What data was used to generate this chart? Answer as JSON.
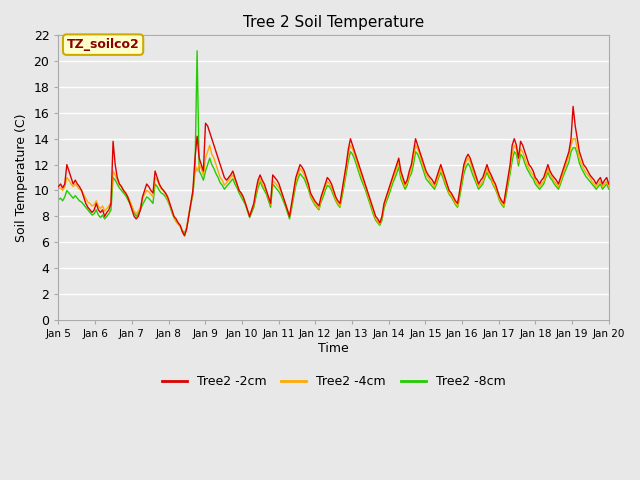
{
  "title": "Tree 2 Soil Temperature",
  "xlabel": "Time",
  "ylabel": "Soil Temperature (C)",
  "annotation_text": "TZ_soilco2",
  "annotation_color": "#8b0000",
  "annotation_bg": "#ffffcc",
  "annotation_border": "#ccaa00",
  "ylim": [
    0,
    22
  ],
  "yticks": [
    0,
    2,
    4,
    6,
    8,
    10,
    12,
    14,
    16,
    18,
    20,
    22
  ],
  "bg_color": "#e8e8e8",
  "grid_color": "#ffffff",
  "line_2cm_color": "#dd0000",
  "line_4cm_color": "#ffaa00",
  "line_8cm_color": "#22cc00",
  "xtick_labels": [
    "Jan 5",
    "Jan 6",
    "Jan 7",
    "Jan 8",
    "Jan 9",
    "Jan 10",
    "Jan 11",
    "Jan 12",
    "Jan 13",
    "Jan 14",
    "Jan 15",
    "Jan 16",
    "Jan 17",
    "Jan 18",
    "Jan 19",
    "Jan 20"
  ],
  "t_2cm": [
    10.3,
    10.5,
    10.2,
    10.5,
    12.0,
    11.5,
    11.0,
    10.5,
    10.8,
    10.5,
    10.3,
    10.0,
    9.5,
    9.0,
    8.7,
    8.5,
    8.3,
    8.5,
    9.0,
    8.5,
    8.3,
    8.5,
    8.0,
    8.3,
    8.5,
    9.0,
    13.8,
    12.0,
    11.0,
    10.5,
    10.3,
    10.0,
    9.8,
    9.5,
    9.0,
    8.5,
    8.0,
    7.8,
    8.0,
    8.5,
    9.5,
    10.0,
    10.5,
    10.3,
    10.0,
    9.8,
    11.5,
    11.0,
    10.5,
    10.2,
    10.0,
    9.8,
    9.5,
    9.0,
    8.5,
    8.0,
    7.8,
    7.5,
    7.3,
    6.8,
    6.5,
    7.0,
    8.0,
    9.0,
    10.0,
    12.5,
    14.2,
    12.5,
    12.0,
    11.5,
    15.2,
    15.0,
    14.5,
    14.0,
    13.5,
    13.0,
    12.5,
    12.0,
    11.5,
    11.0,
    10.8,
    11.0,
    11.2,
    11.5,
    11.0,
    10.5,
    10.0,
    9.8,
    9.5,
    9.0,
    8.5,
    8.0,
    8.5,
    9.0,
    10.0,
    10.8,
    11.2,
    10.8,
    10.5,
    10.0,
    9.5,
    9.0,
    11.2,
    11.0,
    10.8,
    10.5,
    10.0,
    9.5,
    9.0,
    8.5,
    8.0,
    9.0,
    10.0,
    11.0,
    11.5,
    12.0,
    11.8,
    11.5,
    11.0,
    10.5,
    9.8,
    9.5,
    9.2,
    9.0,
    8.8,
    9.5,
    10.0,
    10.5,
    11.0,
    10.8,
    10.5,
    10.0,
    9.5,
    9.2,
    9.0,
    10.0,
    11.0,
    12.0,
    13.2,
    14.0,
    13.5,
    13.0,
    12.5,
    12.0,
    11.5,
    11.0,
    10.5,
    10.0,
    9.5,
    9.0,
    8.5,
    8.0,
    7.8,
    7.5,
    8.0,
    9.0,
    9.5,
    10.0,
    10.5,
    11.0,
    11.5,
    12.0,
    12.5,
    11.5,
    11.0,
    10.5,
    10.8,
    11.5,
    12.0,
    13.0,
    14.0,
    13.5,
    13.0,
    12.5,
    12.0,
    11.5,
    11.2,
    11.0,
    10.8,
    10.5,
    11.0,
    11.5,
    12.0,
    11.5,
    11.0,
    10.5,
    10.0,
    9.8,
    9.5,
    9.2,
    9.0,
    10.0,
    11.0,
    12.0,
    12.5,
    12.8,
    12.5,
    12.0,
    11.5,
    11.0,
    10.5,
    10.8,
    11.0,
    11.5,
    12.0,
    11.5,
    11.2,
    10.8,
    10.5,
    10.0,
    9.5,
    9.2,
    9.0,
    10.0,
    11.0,
    12.0,
    13.5,
    14.0,
    13.5,
    12.5,
    13.8,
    13.5,
    13.0,
    12.5,
    12.0,
    11.8,
    11.5,
    11.0,
    10.8,
    10.5,
    10.8,
    11.0,
    11.5,
    12.0,
    11.5,
    11.2,
    11.0,
    10.8,
    10.5,
    11.0,
    11.5,
    12.0,
    12.5,
    13.0,
    14.0,
    16.5,
    15.0,
    14.0,
    13.0,
    12.5,
    12.0,
    11.8,
    11.5,
    11.2,
    11.0,
    10.8,
    10.5,
    10.8,
    11.0,
    10.5,
    10.8,
    11.0,
    10.5
  ],
  "t_4cm": [
    10.1,
    10.2,
    10.0,
    10.3,
    11.0,
    10.8,
    10.5,
    10.3,
    10.5,
    10.3,
    10.1,
    10.0,
    9.7,
    9.4,
    9.1,
    9.0,
    8.8,
    8.9,
    9.2,
    8.8,
    8.6,
    8.8,
    8.4,
    8.6,
    8.8,
    9.1,
    11.5,
    11.2,
    10.8,
    10.5,
    10.3,
    10.0,
    9.8,
    9.5,
    9.2,
    8.8,
    8.4,
    8.2,
    8.4,
    8.7,
    9.4,
    9.7,
    10.0,
    9.9,
    9.7,
    9.5,
    11.0,
    10.8,
    10.4,
    10.1,
    10.0,
    9.7,
    9.3,
    8.9,
    8.4,
    7.9,
    7.6,
    7.4,
    7.2,
    6.8,
    6.5,
    7.1,
    8.1,
    9.0,
    9.8,
    12.0,
    11.5,
    12.0,
    11.7,
    11.2,
    12.5,
    13.0,
    13.5,
    12.8,
    12.5,
    12.0,
    11.5,
    11.0,
    10.8,
    10.4,
    10.6,
    10.8,
    11.0,
    11.2,
    10.8,
    10.4,
    10.0,
    9.7,
    9.4,
    9.0,
    8.5,
    8.0,
    8.5,
    8.9,
    9.8,
    10.5,
    10.9,
    10.5,
    10.2,
    9.9,
    9.4,
    8.9,
    10.8,
    10.6,
    10.4,
    10.2,
    9.9,
    9.4,
    9.0,
    8.5,
    8.0,
    8.8,
    9.8,
    10.7,
    11.2,
    11.7,
    11.5,
    11.2,
    10.8,
    10.3,
    9.6,
    9.3,
    9.0,
    8.8,
    8.6,
    9.3,
    9.8,
    10.3,
    10.7,
    10.5,
    10.2,
    9.8,
    9.3,
    9.0,
    8.8,
    9.8,
    10.7,
    11.7,
    12.8,
    13.5,
    13.2,
    12.8,
    12.2,
    11.7,
    11.2,
    10.8,
    10.3,
    9.8,
    9.3,
    8.8,
    8.3,
    7.8,
    7.6,
    7.4,
    7.9,
    8.8,
    9.3,
    9.8,
    10.3,
    10.8,
    11.2,
    11.7,
    12.2,
    11.2,
    10.7,
    10.3,
    10.6,
    11.2,
    11.7,
    12.5,
    13.5,
    13.2,
    12.8,
    12.2,
    11.7,
    11.2,
    11.0,
    10.7,
    10.5,
    10.3,
    10.7,
    11.2,
    11.7,
    11.2,
    10.7,
    10.3,
    9.8,
    9.6,
    9.3,
    9.0,
    8.8,
    9.8,
    10.7,
    11.7,
    12.2,
    12.5,
    12.2,
    11.7,
    11.2,
    10.7,
    10.3,
    10.5,
    10.7,
    11.2,
    11.7,
    11.2,
    11.0,
    10.5,
    10.2,
    9.8,
    9.3,
    9.0,
    8.8,
    9.8,
    10.7,
    11.7,
    12.8,
    13.5,
    13.2,
    12.2,
    13.2,
    13.0,
    12.5,
    12.0,
    11.7,
    11.4,
    11.2,
    10.8,
    10.5,
    10.3,
    10.5,
    10.7,
    11.2,
    11.7,
    11.2,
    11.0,
    10.7,
    10.5,
    10.3,
    10.7,
    11.2,
    11.7,
    12.2,
    12.7,
    13.5,
    14.0,
    14.0,
    13.2,
    12.5,
    12.0,
    11.7,
    11.4,
    11.2,
    11.0,
    10.7,
    10.5,
    10.3,
    10.5,
    10.7,
    10.3,
    10.5,
    10.7,
    10.3
  ],
  "t_8cm": [
    9.3,
    9.4,
    9.2,
    9.5,
    10.0,
    9.8,
    9.6,
    9.4,
    9.6,
    9.4,
    9.2,
    9.1,
    8.9,
    8.7,
    8.5,
    8.3,
    8.1,
    8.2,
    8.5,
    8.1,
    7.9,
    8.1,
    7.8,
    8.0,
    8.2,
    8.5,
    11.0,
    10.8,
    10.5,
    10.2,
    10.0,
    9.8,
    9.6,
    9.3,
    9.0,
    8.7,
    8.3,
    8.0,
    8.2,
    8.5,
    8.9,
    9.2,
    9.5,
    9.4,
    9.2,
    9.0,
    10.5,
    10.3,
    10.0,
    9.8,
    9.7,
    9.5,
    9.2,
    8.8,
    8.3,
    7.9,
    7.6,
    7.4,
    7.2,
    6.9,
    6.7,
    7.1,
    8.0,
    8.9,
    9.7,
    11.5,
    20.8,
    11.5,
    11.2,
    10.8,
    11.5,
    12.0,
    12.5,
    12.0,
    11.7,
    11.3,
    11.0,
    10.6,
    10.4,
    10.1,
    10.3,
    10.5,
    10.7,
    10.9,
    10.5,
    10.2,
    9.8,
    9.5,
    9.2,
    8.9,
    8.4,
    7.9,
    8.3,
    8.7,
    9.5,
    10.2,
    10.7,
    10.3,
    10.0,
    9.7,
    9.2,
    8.7,
    10.5,
    10.3,
    10.1,
    9.9,
    9.6,
    9.2,
    8.8,
    8.3,
    7.8,
    8.6,
    9.5,
    10.4,
    10.9,
    11.3,
    11.1,
    10.9,
    10.5,
    10.1,
    9.5,
    9.2,
    8.9,
    8.7,
    8.5,
    9.1,
    9.5,
    10.0,
    10.4,
    10.3,
    10.0,
    9.6,
    9.2,
    8.9,
    8.7,
    9.5,
    10.4,
    11.3,
    12.3,
    13.0,
    12.8,
    12.4,
    11.9,
    11.4,
    10.9,
    10.5,
    10.1,
    9.6,
    9.1,
    8.6,
    8.1,
    7.7,
    7.5,
    7.3,
    7.7,
    8.6,
    9.1,
    9.5,
    10.0,
    10.5,
    10.9,
    11.3,
    11.8,
    10.9,
    10.5,
    10.1,
    10.4,
    11.0,
    11.3,
    12.0,
    13.0,
    12.8,
    12.4,
    11.9,
    11.4,
    10.9,
    10.7,
    10.5,
    10.3,
    10.1,
    10.5,
    11.0,
    11.4,
    11.0,
    10.5,
    10.1,
    9.7,
    9.5,
    9.2,
    8.9,
    8.7,
    9.5,
    10.4,
    11.3,
    11.8,
    12.1,
    11.8,
    11.3,
    10.9,
    10.5,
    10.1,
    10.3,
    10.5,
    11.0,
    11.4,
    11.0,
    10.8,
    10.4,
    10.1,
    9.7,
    9.2,
    8.9,
    8.7,
    9.5,
    10.4,
    11.3,
    12.3,
    13.0,
    12.8,
    11.9,
    12.8,
    12.6,
    12.1,
    11.7,
    11.4,
    11.1,
    10.9,
    10.5,
    10.3,
    10.1,
    10.3,
    10.5,
    11.0,
    11.4,
    11.0,
    10.8,
    10.5,
    10.3,
    10.1,
    10.5,
    11.0,
    11.4,
    11.8,
    12.2,
    13.0,
    13.3,
    13.3,
    12.8,
    12.1,
    11.7,
    11.4,
    11.1,
    10.9,
    10.7,
    10.5,
    10.3,
    10.1,
    10.3,
    10.5,
    10.1,
    10.3,
    10.5,
    10.1
  ]
}
